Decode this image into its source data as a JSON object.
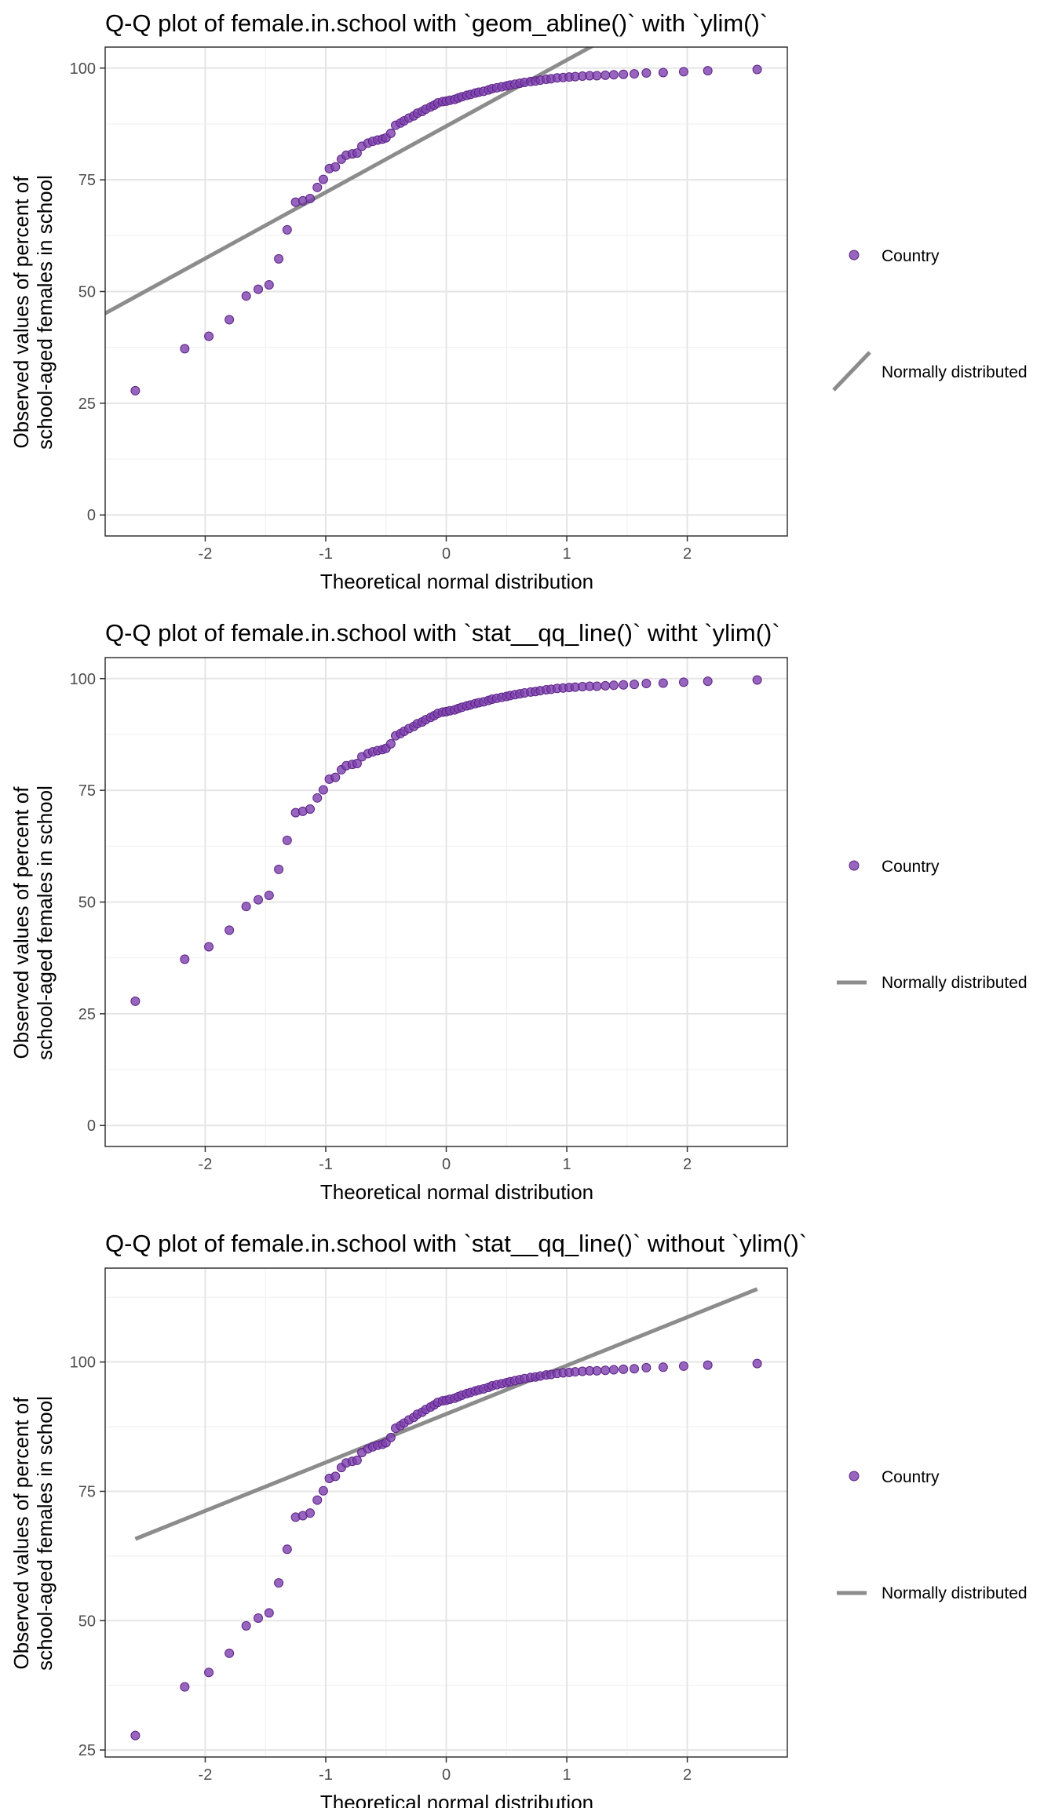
{
  "colors": {
    "point_fill": "#7d3fae",
    "point_stroke": "#5b2286",
    "line": "#8c8c8c",
    "grid_major": "#e5e5e5",
    "grid_minor": "#f1f1f1",
    "panel_border": "#333333",
    "tick_text": "#4d4d4d"
  },
  "shared": {
    "sample_quantiles": [
      -2.58,
      -2.17,
      -1.97,
      -1.8,
      -1.66,
      -1.56,
      -1.47,
      -1.39,
      -1.32,
      -1.25,
      -1.19,
      -1.13,
      -1.07,
      -1.02,
      -0.97,
      -0.92,
      -0.87,
      -0.83,
      -0.78,
      -0.74,
      -0.7,
      -0.65,
      -0.61,
      -0.57,
      -0.53,
      -0.5,
      -0.46,
      -0.42,
      -0.38,
      -0.35,
      -0.31,
      -0.27,
      -0.24,
      -0.2,
      -0.17,
      -0.13,
      -0.1,
      -0.07,
      -0.03,
      0.0,
      0.03,
      0.07,
      0.1,
      0.13,
      0.17,
      0.2,
      0.24,
      0.27,
      0.31,
      0.35,
      0.38,
      0.42,
      0.46,
      0.5,
      0.53,
      0.57,
      0.61,
      0.65,
      0.7,
      0.74,
      0.78,
      0.83,
      0.87,
      0.92,
      0.97,
      1.02,
      1.07,
      1.13,
      1.19,
      1.25,
      1.32,
      1.39,
      1.47,
      1.56,
      1.66,
      1.8,
      1.97,
      2.17,
      2.58
    ],
    "observed_values": [
      27.8,
      37.2,
      40.0,
      43.7,
      49.0,
      50.5,
      51.5,
      57.3,
      63.8,
      70.0,
      70.3,
      70.8,
      73.3,
      75.1,
      77.5,
      77.9,
      79.6,
      80.5,
      80.8,
      81.0,
      82.5,
      83.2,
      83.6,
      83.9,
      84.1,
      84.4,
      85.4,
      87.2,
      87.7,
      88.2,
      88.8,
      89.3,
      89.9,
      90.3,
      90.8,
      91.3,
      91.7,
      92.2,
      92.5,
      92.6,
      92.8,
      93.0,
      93.3,
      93.6,
      93.9,
      94.1,
      94.4,
      94.6,
      94.8,
      95.1,
      95.4,
      95.6,
      95.8,
      96.0,
      96.2,
      96.4,
      96.6,
      96.8,
      97.0,
      97.1,
      97.3,
      97.5,
      97.6,
      97.8,
      97.9,
      98.0,
      98.1,
      98.2,
      98.3,
      98.3,
      98.4,
      98.5,
      98.6,
      98.7,
      98.9,
      99.0,
      99.2,
      99.4,
      99.7
    ]
  },
  "chart_data": [
    {
      "type": "scatter",
      "title": "Q-Q plot of female.in.school with `geom_abline()` with `ylim()`",
      "xlabel": "Theoretical normal distribution",
      "ylabel": [
        "Observed values of percent of",
        "school-aged females in school"
      ],
      "xlim": [
        -2.83,
        2.83
      ],
      "ylim": [
        -4.7,
        104.7
      ],
      "x_ticks": [
        -2,
        -1,
        0,
        1,
        2
      ],
      "x_tick_labels": [
        "-2",
        "-1",
        "0",
        "1",
        "2"
      ],
      "y_ticks": [
        0,
        25,
        50,
        75,
        100
      ],
      "y_tick_labels": [
        "0",
        "25",
        "50",
        "75",
        "100"
      ],
      "grid": true,
      "legend_position": "right",
      "series": [
        {
          "name": "Country",
          "kind": "points",
          "x_ref": "shared.sample_quantiles",
          "y_ref": "shared.observed_values"
        },
        {
          "name": "Normally distributed",
          "kind": "abline",
          "intercept": 87.0,
          "slope": 14.8
        }
      ],
      "legend": [
        {
          "label": "Country",
          "key": "point"
        },
        {
          "label": "Normally distributed",
          "key": "diagonal-line"
        }
      ]
    },
    {
      "type": "scatter",
      "title": "Q-Q plot of female.in.school with `stat__qq_line()` witht `ylim()`",
      "xlabel": "Theoretical normal distribution",
      "ylabel": [
        "Observed values of percent of",
        "school-aged females in school"
      ],
      "xlim": [
        -2.83,
        2.83
      ],
      "ylim": [
        -4.7,
        104.7
      ],
      "x_ticks": [
        -2,
        -1,
        0,
        1,
        2
      ],
      "x_tick_labels": [
        "-2",
        "-1",
        "0",
        "1",
        "2"
      ],
      "y_ticks": [
        0,
        25,
        50,
        75,
        100
      ],
      "y_tick_labels": [
        "0",
        "25",
        "50",
        "75",
        "100"
      ],
      "grid": true,
      "legend_position": "right",
      "series": [
        {
          "name": "Country",
          "kind": "points",
          "x_ref": "shared.sample_quantiles",
          "y_ref": "shared.observed_values"
        }
      ],
      "legend": [
        {
          "label": "Country",
          "key": "point"
        },
        {
          "label": "Normally distributed",
          "key": "horizontal-line"
        }
      ]
    },
    {
      "type": "scatter",
      "title": "Q-Q plot of female.in.school with `stat__qq_line()` without `ylim()`",
      "xlabel": "Theoretical normal distribution",
      "ylabel": [
        "Observed values of percent of",
        "school-aged females in school"
      ],
      "xlim": [
        -2.83,
        2.83
      ],
      "ylim": [
        23.65,
        118.15
      ],
      "x_ticks": [
        -2,
        -1,
        0,
        1,
        2
      ],
      "x_tick_labels": [
        "-2",
        "-1",
        "0",
        "1",
        "2"
      ],
      "y_ticks": [
        25,
        50,
        75,
        100
      ],
      "y_tick_labels": [
        "25",
        "50",
        "75",
        "100"
      ],
      "grid": true,
      "legend_position": "right",
      "series": [
        {
          "name": "Country",
          "kind": "points",
          "x_ref": "shared.sample_quantiles",
          "y_ref": "shared.observed_values"
        },
        {
          "name": "Normally distributed",
          "kind": "segment",
          "x": [
            -2.58,
            2.58
          ],
          "y": [
            65.8,
            114.1
          ]
        }
      ],
      "legend": [
        {
          "label": "Country",
          "key": "point"
        },
        {
          "label": "Normally distributed",
          "key": "horizontal-line"
        }
      ]
    }
  ]
}
